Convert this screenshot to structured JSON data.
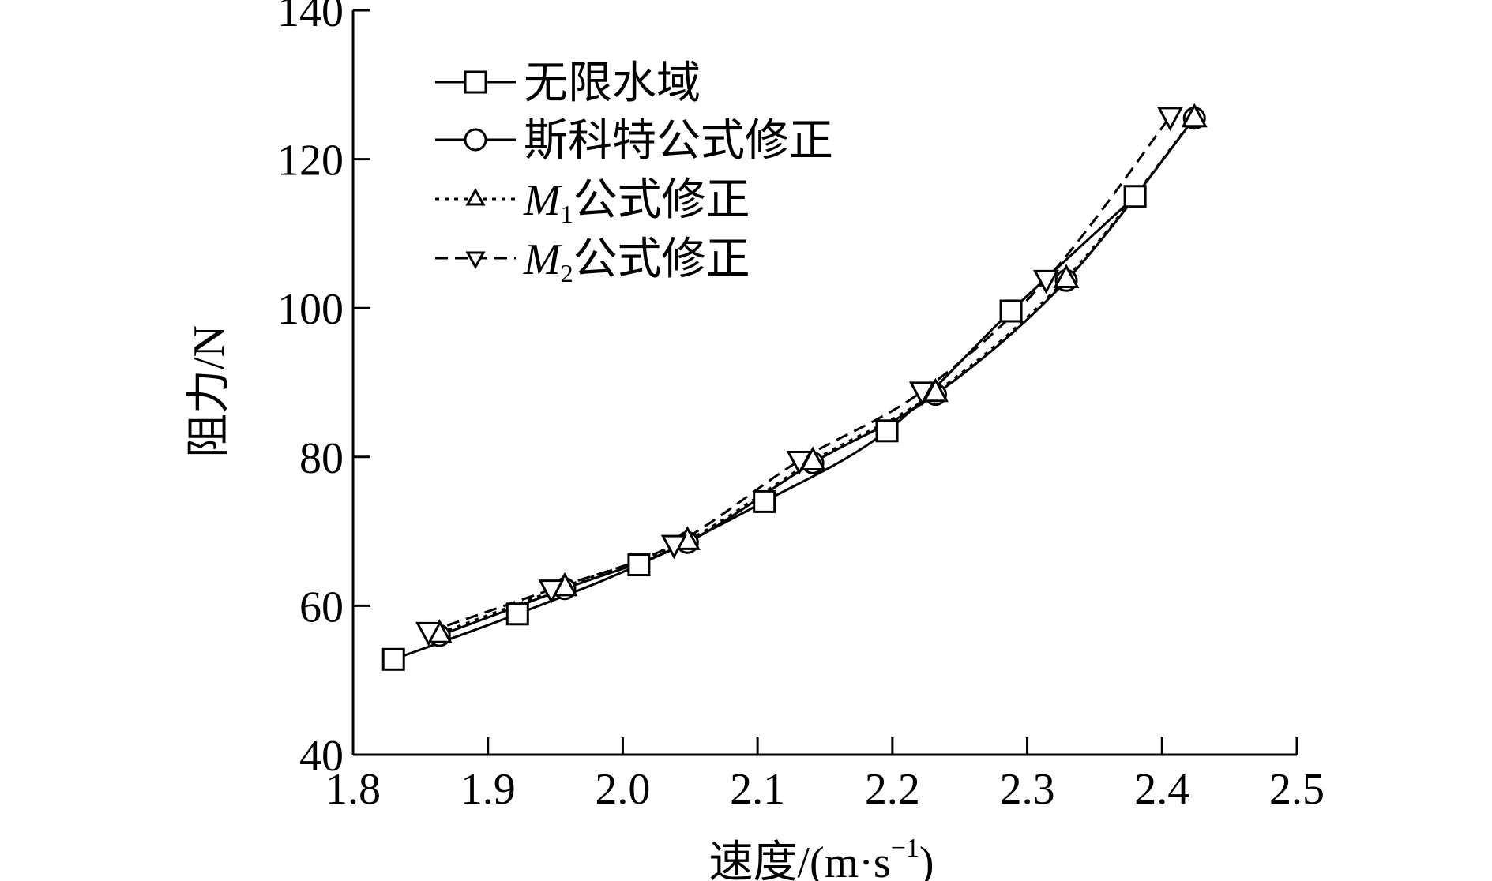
{
  "chart_data": {
    "type": "line",
    "xlabel": "速度/(m·s",
    "xlabel_sup": "−1",
    "xlabel_close": ")",
    "ylabel": "阻力/N",
    "xlim": [
      1.8,
      2.5
    ],
    "ylim": [
      40,
      140
    ],
    "x_ticks": [
      1.8,
      1.9,
      2.0,
      2.1,
      2.2,
      2.3,
      2.4,
      2.5
    ],
    "x_tick_labels": [
      "1.8",
      "1.9",
      "2.0",
      "2.1",
      "2.2",
      "2.3",
      "2.4",
      "2.5"
    ],
    "y_ticks": [
      40,
      60,
      80,
      100,
      120,
      140
    ],
    "y_tick_labels": [
      "40",
      "60",
      "80",
      "100",
      "120",
      "140"
    ],
    "grid": false,
    "legend_position": "top-left",
    "series": [
      {
        "name": "无限水域",
        "marker": "square",
        "line_style": "solid",
        "x": [
          1.83,
          1.922,
          2.012,
          2.105,
          2.196,
          2.288,
          2.38
        ],
        "y": [
          52.8,
          58.9,
          65.5,
          74.0,
          83.5,
          99.6,
          115.0
        ]
      },
      {
        "name": "斯科特公式修正",
        "marker": "circle",
        "line_style": "solid",
        "x": [
          1.864,
          1.957,
          2.048,
          2.141,
          2.232,
          2.329,
          2.424
        ],
        "y": [
          56.0,
          62.3,
          68.5,
          79.2,
          88.4,
          103.7,
          125.5
        ]
      },
      {
        "name": "公式修正",
        "name_prefix": "M",
        "name_sub": "1",
        "marker": "triangle-up",
        "line_style": "dotted",
        "x": [
          1.864,
          1.957,
          2.048,
          2.141,
          2.232,
          2.329,
          2.424
        ],
        "y": [
          56.3,
          62.6,
          68.8,
          79.5,
          88.7,
          104.0,
          125.6
        ]
      },
      {
        "name": "公式修正",
        "name_prefix": "M",
        "name_sub": "2",
        "marker": "triangle-down",
        "line_style": "dashed",
        "x": [
          1.856,
          1.947,
          2.038,
          2.131,
          2.222,
          2.314,
          2.406
        ],
        "y": [
          56.5,
          62.2,
          68.2,
          79.5,
          88.8,
          103.8,
          125.7
        ]
      }
    ]
  }
}
